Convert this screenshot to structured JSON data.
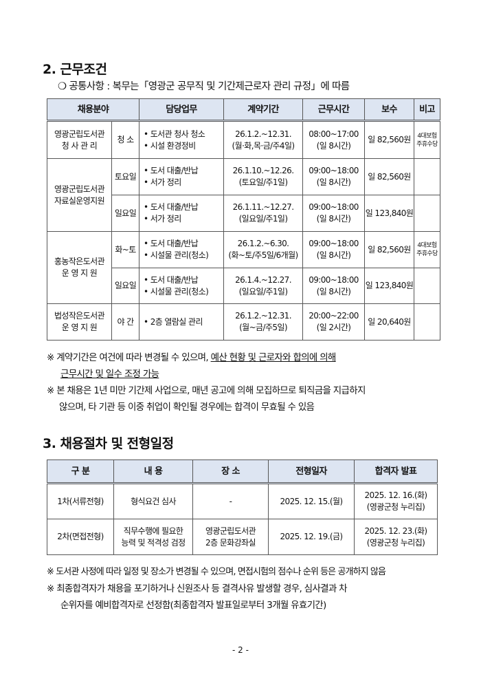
{
  "section2": {
    "title": "2. 근무조건",
    "common": "❍ 공통사항 : 복무는「영광군 공무직 및 기간제근로자 관리 규정」에 따름",
    "headers": [
      "채용분야",
      "담당업무",
      "계약기간",
      "근무시간",
      "보수",
      "비고"
    ],
    "rows": [
      {
        "area": "영광군립도서관\n청 사 관 리",
        "sub": "청 소",
        "duty": "• 도서관 청사 청소\n• 시설 환경정비",
        "period": "26.1.2.~12.31.\n(월·화,목·금/주4일)",
        "hours": "08:00~17:00\n(일 8시간)",
        "pay": "일 82,560원",
        "note": "4대보험\n주휴수당"
      },
      {
        "area": "영광군립도서관\n자료실운영지원",
        "sub": "토요일",
        "duty": "• 도서 대출/반납\n• 서가 정리",
        "period": "26.1.10.~12.26.\n(토요일/주1일)",
        "hours": "09:00~18:00\n(일 8시간)",
        "pay": "일 82,560원",
        "note": ""
      },
      {
        "area": "",
        "sub": "일요일",
        "duty": "• 도서 대출/반납\n• 서가 정리",
        "period": "26.1.11.~12.27.\n(일요일/주1일)",
        "hours": "09:00~18:00\n(일 8시간)",
        "pay": "일 123,840원",
        "note": ""
      },
      {
        "area": "홍농작은도서관\n운 영 지 원",
        "sub": "화~토",
        "duty": "• 도서 대출/반납\n• 시설물 관리(청소)",
        "period": "26.1.2.~6.30.\n(화~토/주5일/6개월)",
        "hours": "09:00~18:00\n(일 8시간)",
        "pay": "일 82,560원",
        "note": "4대보험\n주휴수당"
      },
      {
        "area": "",
        "sub": "일요일",
        "duty": "• 도서 대출/반납\n• 시설물 관리(청소)",
        "period": "26.1.4.~12.27.\n(일요일/주1일)",
        "hours": "09:00~18:00\n(일 8시간)",
        "pay": "일 123,840원",
        "note": ""
      },
      {
        "area": "법성작은도서관\n운 영 지 원",
        "sub": "야 간",
        "duty": "• 2층 열람실 관리",
        "period": "26.1.2.~12.31.\n(월~금/주5일)",
        "hours": "20:00~22:00\n(일 2시간)",
        "pay": "일 20,640원",
        "note": ""
      }
    ],
    "notes": {
      "n1a": "※ 계약기간은 여건에 따라 변경될 수 있으며, ",
      "n1b": "예산 현황 및 근로자와 합의에 의해",
      "n1c": "근무시간 및 일수 조정 가능",
      "n2a": "※ 본 채용은 1년 미만 기간제 사업으로, 매년 공고에 의해 모집하므로 퇴직금을 지급하지",
      "n2b": "않으며, 타 기관 등 이중 취업이 확인될 경우에는 합격이 무효될 수 있음"
    }
  },
  "section3": {
    "title": "3. 채용절차 및 전형일정",
    "headers": [
      "구 분",
      "내 용",
      "장 소",
      "전형일자",
      "합격자 발표"
    ],
    "rows": [
      {
        "stage": "1차(서류전형)",
        "content": "형식요건 심사",
        "place": "-",
        "date": "2025. 12. 15.(월)",
        "result": "2025. 12. 16.(화)\n(영광군청 누리집)"
      },
      {
        "stage": "2차(면접전형)",
        "content": "직무수행에 필요한\n능력 및 적격성 검정",
        "place": "영광군립도서관\n2층 문화강좌실",
        "date": "2025. 12. 19.(금)",
        "result": "2025. 12. 23.(화)\n(영광군청 누리집)"
      }
    ],
    "notes": [
      "※ 도서관 사정에 따라 일정 및 장소가 변경될 수 있으며, 면접시험의 점수나 순위 등은 공개하지 않음",
      "※ 최종합격자가 채용을 포기하거나 신원조사 등 결격사유 발생할 경우, 심사결과 차",
      "순위자를 예비합격자로 선정함(최종합격자 발표일로부터 3개월 유효기간)"
    ]
  },
  "page_number": "- 2 -"
}
